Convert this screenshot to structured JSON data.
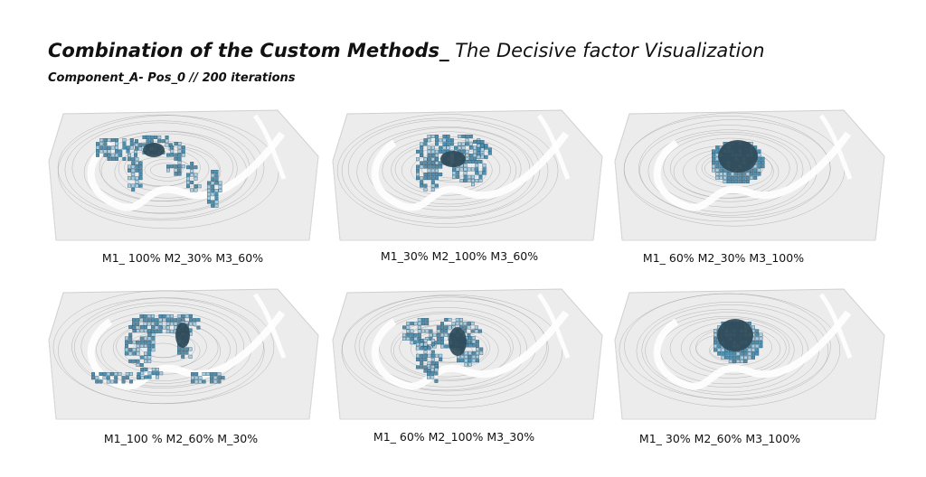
{
  "header": {
    "title_bold": "Combination of the Custom Methods_",
    "title_light": " The Decisive factor Visualization",
    "subtitle": "Component_A- Pos_0 // 200 iterations"
  },
  "panels": [
    {
      "caption": "M1_ 100% M2_30% M3_60%"
    },
    {
      "caption": "M1_30% M2_100% M3_60%"
    },
    {
      "caption": "M1_ 60% M2_30% M3_100%"
    },
    {
      "caption": "M1_100 % M2_60% M_30%"
    },
    {
      "caption": "M1_ 60% M2_100% M3_30%"
    },
    {
      "caption": "M1_ 30% M2_60% M3_100%"
    }
  ],
  "colors": {
    "cell_light": "#a8cde0",
    "cell_mid": "#4f8fb0",
    "cell_dark": "#2f4a58",
    "terrain": "#ececec",
    "contour": "#9a9a9a"
  }
}
